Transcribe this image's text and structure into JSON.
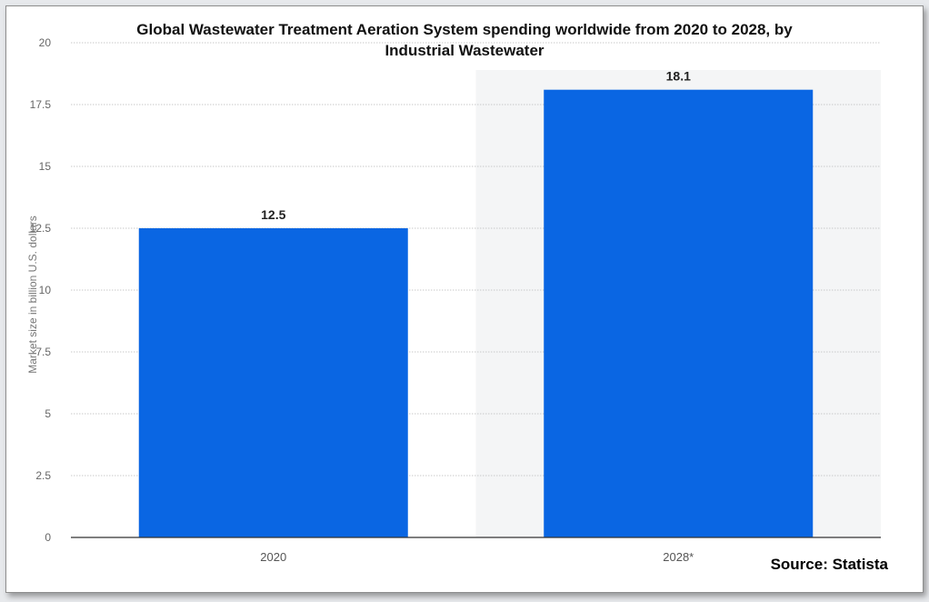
{
  "chart_data": {
    "type": "bar",
    "title_lines": [
      "Global Wastewater Treatment Aeration System spending worldwide from 2020 to 2028, by",
      "Industrial Wastewater"
    ],
    "categories": [
      "2020",
      "2028*"
    ],
    "values": [
      12.5,
      18.1
    ],
    "value_labels": [
      "12.5",
      "18.1"
    ],
    "ylabel": "Market size in billion U.S. dollars",
    "xlabel": "",
    "ylim": [
      0,
      20
    ],
    "yticks": [
      "0",
      "2.5",
      "5",
      "7.5",
      "10",
      "12.5",
      "15",
      "17.5",
      "20"
    ],
    "grid": true,
    "forecast_shading_category": "2028*",
    "bar_color": "#0a66e3",
    "source": "Source: Statista"
  }
}
